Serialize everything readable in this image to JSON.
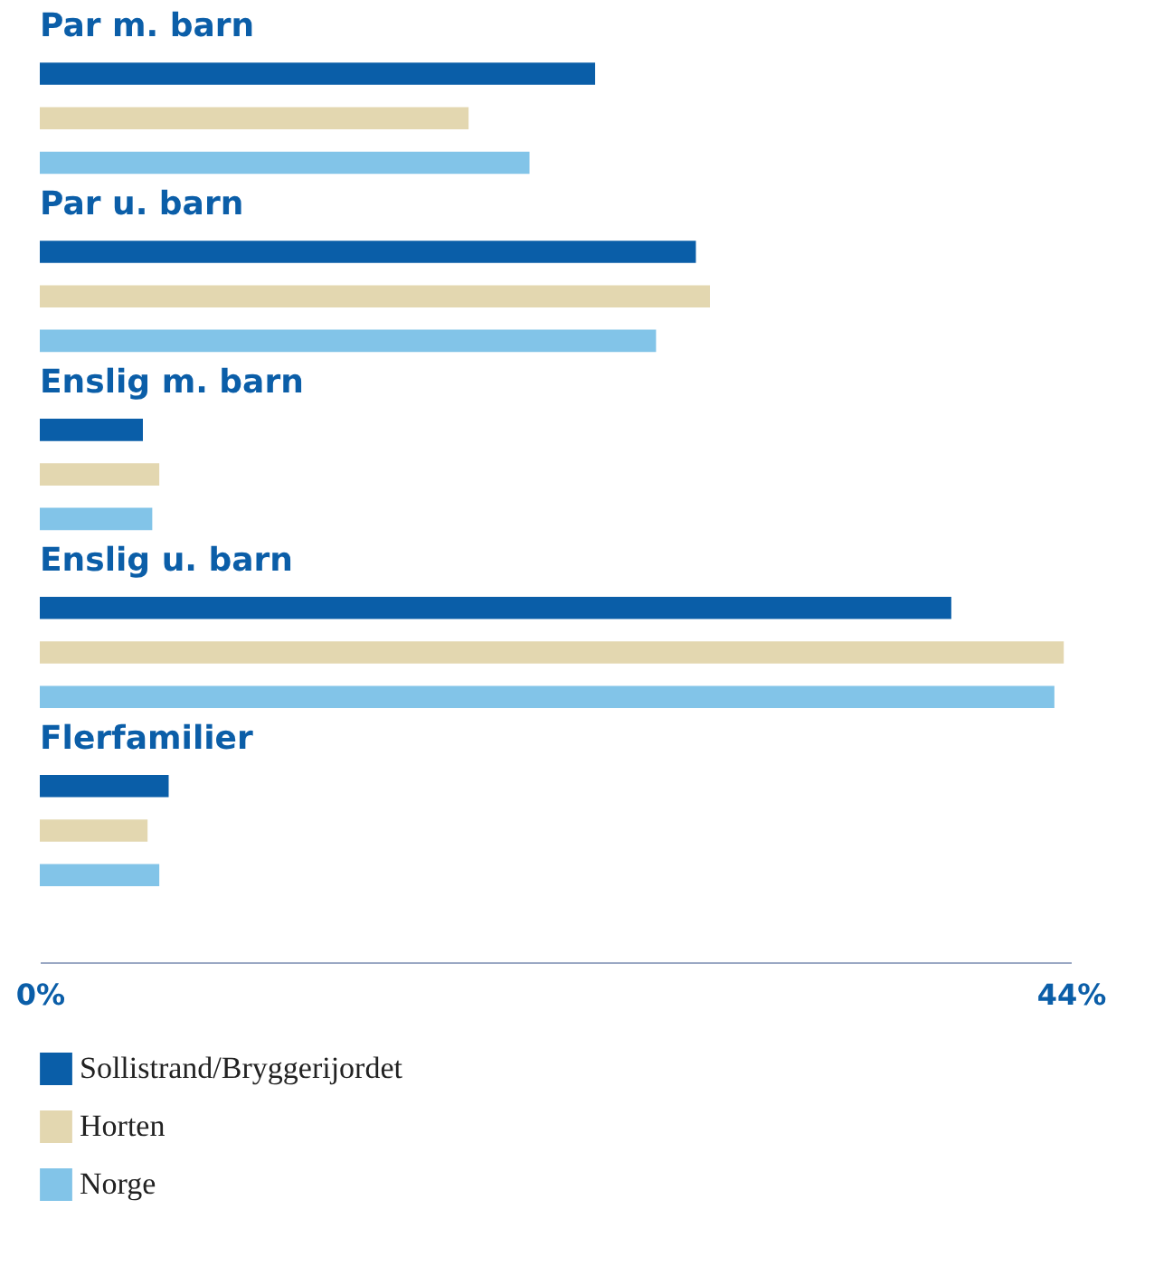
{
  "chart_data": {
    "type": "bar",
    "orientation": "horizontal",
    "categories": [
      "Par m. barn",
      "Par u. barn",
      "Enslig m. barn",
      "Enslig u. barn",
      "Flerfamilier"
    ],
    "series": [
      {
        "name": "Sollistrand/Bryggerijordet",
        "color": "#0a5ea8",
        "values": [
          23.7,
          28.0,
          4.4,
          38.9,
          5.5
        ]
      },
      {
        "name": "Horten",
        "color": "#e3d7b0",
        "values": [
          18.3,
          28.6,
          5.1,
          43.7,
          4.6
        ]
      },
      {
        "name": "Norge",
        "color": "#82c4e8",
        "values": [
          20.9,
          26.3,
          4.8,
          43.3,
          5.1
        ]
      }
    ],
    "xlim": [
      0,
      44
    ],
    "xticks": [
      {
        "value": 0,
        "label": "0%"
      },
      {
        "value": 44,
        "label": "44%"
      }
    ],
    "grid": false,
    "legend": "bottom"
  }
}
